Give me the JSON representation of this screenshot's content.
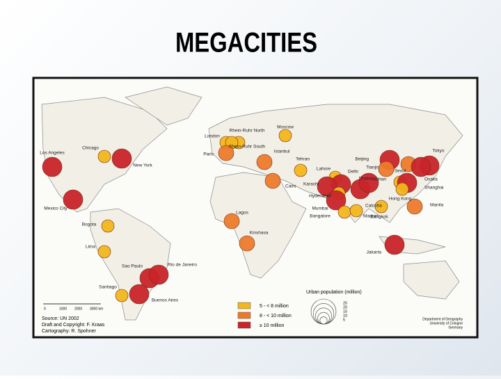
{
  "title": "MEGACITIES",
  "map": {
    "cities": [
      {
        "name": "Los Angeles",
        "class": 2
      },
      {
        "name": "Chicago",
        "class": 0
      },
      {
        "name": "New York",
        "class": 2
      },
      {
        "name": "Mexico City",
        "class": 2
      },
      {
        "name": "Bogota",
        "class": 0
      },
      {
        "name": "Lima",
        "class": 0
      },
      {
        "name": "Sao Paulo",
        "class": 2
      },
      {
        "name": "Rio de Janeiro",
        "class": 2
      },
      {
        "name": "Santiago",
        "class": 0
      },
      {
        "name": "Buenos Aires",
        "class": 2
      },
      {
        "name": "London",
        "class": 0
      },
      {
        "name": "Rhein-Ruhr North",
        "class": 0
      },
      {
        "name": "Rhein-Ruhr South",
        "class": 0
      },
      {
        "name": "Paris",
        "class": 1
      },
      {
        "name": "Moscow",
        "class": 0
      },
      {
        "name": "Istanbul",
        "class": 1
      },
      {
        "name": "Tehran",
        "class": 0
      },
      {
        "name": "Lahore",
        "class": 0
      },
      {
        "name": "Delhi",
        "class": 2
      },
      {
        "name": "Karachi",
        "class": 2
      },
      {
        "name": "Cairo",
        "class": 1
      },
      {
        "name": "Lagos",
        "class": 1
      },
      {
        "name": "Kinshasa",
        "class": 1
      },
      {
        "name": "Hyderabad",
        "class": 0
      },
      {
        "name": "Mumbai",
        "class": 2
      },
      {
        "name": "Bangalore",
        "class": 0
      },
      {
        "name": "Madras",
        "class": 0
      },
      {
        "name": "Calcutta",
        "class": 2
      },
      {
        "name": "Dhaka",
        "class": 2
      },
      {
        "name": "Beijing",
        "class": 2
      },
      {
        "name": "Tianjin",
        "class": 1
      },
      {
        "name": "Seoul",
        "class": 1
      },
      {
        "name": "Tokyo",
        "class": 2
      },
      {
        "name": "Osaka",
        "class": 2
      },
      {
        "name": "Wuhan",
        "class": 0
      },
      {
        "name": "Shanghai",
        "class": 2
      },
      {
        "name": "Hong Kong",
        "class": 0
      },
      {
        "name": "Bangkok",
        "class": 0
      },
      {
        "name": "Manila",
        "class": 1
      },
      {
        "name": "Jakarta",
        "class": 2
      }
    ],
    "legend": {
      "title": "Urban population (million)",
      "classes": [
        {
          "label": "5 - < 8 million",
          "color": "#f2b61e"
        },
        {
          "label": "8 - < 10 million",
          "color": "#ec7a2c"
        },
        {
          "label": "≥ 10 million",
          "color": "#c8242a"
        }
      ],
      "scale_labels": [
        25,
        20,
        15,
        10,
        5
      ]
    },
    "scale_bar": [
      "0",
      "1000",
      "2000",
      "3000 km"
    ],
    "source": [
      "Source: UN 2002",
      "Draft and Copyright: F. Kraas",
      "Cartography: R. Spohner"
    ],
    "credit": [
      "Department of Geography",
      "University of Cologne",
      "Germany"
    ]
  }
}
